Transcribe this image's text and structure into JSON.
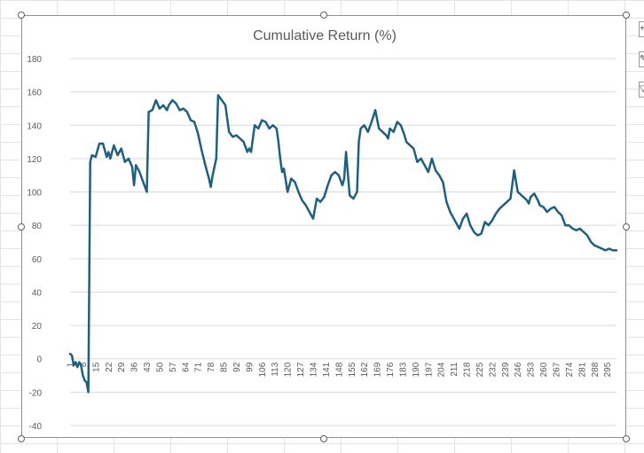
{
  "chart_data": {
    "type": "line",
    "title": "Cumulative Return (%)",
    "xlabel": "",
    "ylabel": "",
    "ylim": [
      -40,
      180
    ],
    "y_ticks": [
      -40,
      -20,
      0,
      20,
      40,
      60,
      80,
      100,
      120,
      140,
      160,
      180
    ],
    "x_tick_labels": [
      "1",
      "8",
      "15",
      "22",
      "29",
      "36",
      "43",
      "50",
      "57",
      "64",
      "71",
      "78",
      "85",
      "92",
      "99",
      "106",
      "113",
      "120",
      "127",
      "134",
      "141",
      "148",
      "155",
      "162",
      "169",
      "176",
      "183",
      "190",
      "197",
      "204",
      "211",
      "218",
      "225",
      "232",
      "239",
      "246",
      "253",
      "260",
      "267",
      "274",
      "281",
      "288",
      "295"
    ],
    "grid": "horizontal",
    "legend": "none",
    "series_color": "#1f5f7f",
    "series": [
      {
        "x": [
          1,
          2,
          3,
          4,
          5,
          6,
          7,
          8,
          9,
          10,
          11,
          12,
          13,
          15,
          17,
          19,
          21,
          22,
          23,
          25,
          27,
          29,
          31,
          33,
          35,
          36,
          37,
          39,
          41,
          43,
          44,
          46,
          48,
          50,
          52,
          54,
          55,
          57,
          59,
          61,
          63,
          65,
          67,
          69,
          71,
          73,
          75,
          76,
          77,
          78,
          79,
          81,
          82,
          84,
          86,
          88,
          90,
          92,
          94,
          96,
          98,
          99,
          100,
          102,
          104,
          106,
          108,
          110,
          112,
          114,
          115,
          116,
          117,
          118,
          120,
          122,
          124,
          126,
          128,
          130,
          132,
          134,
          136,
          138,
          140,
          142,
          144,
          146,
          148,
          150,
          151,
          152,
          154,
          156,
          158,
          159,
          160,
          162,
          164,
          166,
          168,
          170,
          172,
          174,
          175,
          176,
          178,
          180,
          182,
          184,
          185,
          187,
          189,
          191,
          193,
          195,
          197,
          199,
          201,
          203,
          204,
          205,
          207,
          209,
          211,
          212,
          214,
          216,
          218,
          220,
          221,
          222,
          224,
          226,
          228,
          230,
          232,
          234,
          236,
          238,
          240,
          242,
          244,
          246,
          248,
          250,
          251,
          252,
          253,
          255,
          257,
          258,
          260,
          262,
          264,
          266,
          268,
          270,
          272,
          274,
          276,
          278,
          280,
          282,
          284,
          285,
          286,
          288,
          290,
          292,
          294,
          296,
          298,
          300
        ],
        "values": [
          3,
          2,
          -4,
          -2,
          -5,
          -2,
          -4,
          -10,
          -13,
          -14,
          -20,
          118,
          122,
          121,
          129,
          129,
          121,
          124,
          120,
          128,
          122,
          126,
          118,
          120,
          115,
          104,
          116,
          112,
          106,
          100,
          148,
          149,
          155,
          150,
          152,
          149,
          152,
          155,
          153,
          149,
          150,
          148,
          143,
          142,
          135,
          125,
          116,
          112,
          108,
          103,
          110,
          120,
          158,
          155,
          152,
          136,
          133,
          134,
          132,
          130,
          124,
          126,
          124,
          140,
          138,
          143,
          142,
          138,
          140,
          138,
          130,
          120,
          112,
          114,
          100,
          108,
          106,
          100,
          95,
          92,
          88,
          84,
          96,
          94,
          97,
          104,
          110,
          112,
          110,
          104,
          108,
          124,
          98,
          96,
          100,
          130,
          138,
          140,
          136,
          142,
          149,
          138,
          136,
          134,
          132,
          138,
          136,
          142,
          140,
          134,
          130,
          128,
          126,
          118,
          120,
          116,
          112,
          120,
          113,
          110,
          108,
          106,
          94,
          88,
          84,
          82,
          78,
          84,
          87,
          80,
          78,
          76,
          74,
          75,
          82,
          80,
          83,
          87,
          90,
          92,
          94,
          96,
          113,
          100,
          98,
          96,
          95,
          93,
          97,
          99,
          95,
          92,
          91,
          88,
          90,
          91,
          88,
          86,
          80,
          80,
          78,
          77,
          78,
          76,
          74,
          72,
          70,
          68,
          67,
          66,
          65,
          66,
          65,
          65
        ]
      }
    ]
  }
}
